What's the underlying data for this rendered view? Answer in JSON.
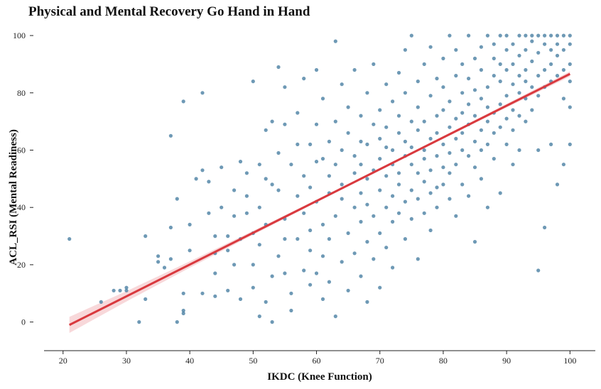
{
  "colors": {
    "points": "#4a7fa3",
    "fit_line": "#d9393e",
    "ci_band": "#f2b8bc",
    "axis": "#222222"
  },
  "chart_data": {
    "type": "scatter",
    "title": "Physical and Mental Recovery Go Hand in Hand",
    "xlabel": "IKDC (Knee Function)",
    "ylabel": "ACL_RSI (Mental Readiness)",
    "xlim": [
      17,
      104
    ],
    "ylim": [
      -10,
      102
    ],
    "x_ticks": [
      20,
      30,
      40,
      50,
      60,
      70,
      80,
      90,
      100
    ],
    "y_ticks": [
      0,
      20,
      40,
      60,
      80,
      100
    ],
    "grid": false,
    "regression": {
      "slope": 1.109,
      "intercept": -24.3,
      "x_range": [
        21,
        100
      ],
      "ci_halfwidth_at": [
        [
          21,
          2.8
        ],
        [
          30,
          1.8
        ],
        [
          40,
          1.1
        ],
        [
          50,
          0.7
        ],
        [
          60,
          0.45
        ],
        [
          75,
          0.4
        ],
        [
          85,
          0.5
        ],
        [
          100,
          0.9
        ]
      ]
    },
    "points": [
      [
        21,
        29
      ],
      [
        26,
        7
      ],
      [
        28,
        11
      ],
      [
        29,
        11
      ],
      [
        30,
        11
      ],
      [
        30,
        12
      ],
      [
        32,
        0
      ],
      [
        33,
        30
      ],
      [
        33,
        8
      ],
      [
        35,
        21
      ],
      [
        35,
        23
      ],
      [
        36,
        19
      ],
      [
        37,
        65
      ],
      [
        37,
        22
      ],
      [
        37,
        33
      ],
      [
        38,
        43
      ],
      [
        38,
        0
      ],
      [
        39,
        77
      ],
      [
        39,
        4
      ],
      [
        39,
        10
      ],
      [
        39,
        3
      ],
      [
        40,
        25
      ],
      [
        40,
        34
      ],
      [
        41,
        50
      ],
      [
        42,
        53
      ],
      [
        42,
        10
      ],
      [
        42,
        80
      ],
      [
        43,
        38
      ],
      [
        43,
        49
      ],
      [
        44,
        24
      ],
      [
        44,
        30
      ],
      [
        44,
        17
      ],
      [
        44,
        9
      ],
      [
        45,
        54
      ],
      [
        45,
        40
      ],
      [
        46,
        25
      ],
      [
        46,
        30
      ],
      [
        46,
        11
      ],
      [
        47,
        46
      ],
      [
        47,
        37
      ],
      [
        47,
        20
      ],
      [
        48,
        56
      ],
      [
        48,
        29
      ],
      [
        48,
        8
      ],
      [
        49,
        38
      ],
      [
        49,
        52
      ],
      [
        49,
        44
      ],
      [
        50,
        31
      ],
      [
        50,
        84
      ],
      [
        50,
        12
      ],
      [
        50,
        20
      ],
      [
        51,
        27
      ],
      [
        51,
        55
      ],
      [
        51,
        40
      ],
      [
        51,
        2
      ],
      [
        52,
        50
      ],
      [
        52,
        67
      ],
      [
        52,
        34
      ],
      [
        52,
        7
      ],
      [
        53,
        16
      ],
      [
        53,
        48
      ],
      [
        53,
        70
      ],
      [
        53,
        0
      ],
      [
        54,
        89
      ],
      [
        54,
        59
      ],
      [
        54,
        46
      ],
      [
        54,
        23
      ],
      [
        55,
        82
      ],
      [
        55,
        69
      ],
      [
        55,
        36
      ],
      [
        55,
        17
      ],
      [
        55,
        29
      ],
      [
        56,
        55
      ],
      [
        56,
        10
      ],
      [
        56,
        4
      ],
      [
        57,
        44
      ],
      [
        57,
        62
      ],
      [
        57,
        73
      ],
      [
        57,
        29
      ],
      [
        58,
        38
      ],
      [
        58,
        51
      ],
      [
        58,
        18
      ],
      [
        58,
        85
      ],
      [
        59,
        25
      ],
      [
        59,
        62
      ],
      [
        59,
        47
      ],
      [
        59,
        13
      ],
      [
        59,
        32
      ],
      [
        60,
        69
      ],
      [
        60,
        42
      ],
      [
        60,
        17
      ],
      [
        60,
        88
      ],
      [
        60,
        56
      ],
      [
        61,
        23
      ],
      [
        61,
        78
      ],
      [
        61,
        34
      ],
      [
        61,
        57
      ],
      [
        61,
        8
      ],
      [
        62,
        45
      ],
      [
        62,
        63
      ],
      [
        62,
        29
      ],
      [
        62,
        51
      ],
      [
        62,
        14
      ],
      [
        63,
        98
      ],
      [
        63,
        37
      ],
      [
        63,
        55
      ],
      [
        63,
        2
      ],
      [
        63,
        70
      ],
      [
        64,
        43
      ],
      [
        64,
        60
      ],
      [
        64,
        21
      ],
      [
        64,
        83
      ],
      [
        64,
        48
      ],
      [
        65,
        31
      ],
      [
        65,
        66
      ],
      [
        65,
        75
      ],
      [
        65,
        11
      ],
      [
        66,
        52
      ],
      [
        66,
        40
      ],
      [
        66,
        58
      ],
      [
        66,
        24
      ],
      [
        66,
        88
      ],
      [
        67,
        45
      ],
      [
        67,
        63
      ],
      [
        67,
        35
      ],
      [
        67,
        72
      ],
      [
        67,
        16
      ],
      [
        67,
        55
      ],
      [
        68,
        50
      ],
      [
        68,
        28
      ],
      [
        68,
        80
      ],
      [
        68,
        62
      ],
      [
        68,
        7
      ],
      [
        68,
        41
      ],
      [
        69,
        69
      ],
      [
        69,
        53
      ],
      [
        69,
        37
      ],
      [
        69,
        22
      ],
      [
        69,
        90
      ],
      [
        70,
        57
      ],
      [
        70,
        46
      ],
      [
        70,
        74
      ],
      [
        70,
        31
      ],
      [
        70,
        64
      ],
      [
        70,
        12
      ],
      [
        71,
        40
      ],
      [
        71,
        61
      ],
      [
        71,
        83
      ],
      [
        71,
        51
      ],
      [
        71,
        26
      ],
      [
        71,
        68
      ],
      [
        72,
        55
      ],
      [
        72,
        44
      ],
      [
        72,
        77
      ],
      [
        72,
        35
      ],
      [
        72,
        19
      ],
      [
        72,
        60
      ],
      [
        73,
        48
      ],
      [
        73,
        66
      ],
      [
        73,
        72
      ],
      [
        73,
        38
      ],
      [
        73,
        87
      ],
      [
        73,
        52
      ],
      [
        74,
        58
      ],
      [
        74,
        42
      ],
      [
        74,
        63
      ],
      [
        74,
        29
      ],
      [
        74,
        80
      ],
      [
        74,
        95
      ],
      [
        75,
        55
      ],
      [
        75,
        70
      ],
      [
        75,
        46
      ],
      [
        75,
        36
      ],
      [
        75,
        61
      ],
      [
        75,
        100
      ],
      [
        76,
        52
      ],
      [
        76,
        67
      ],
      [
        76,
        75
      ],
      [
        76,
        43
      ],
      [
        76,
        84
      ],
      [
        76,
        22
      ],
      [
        77,
        60
      ],
      [
        77,
        49
      ],
      [
        77,
        70
      ],
      [
        77,
        38
      ],
      [
        77,
        90
      ],
      [
        77,
        57
      ],
      [
        78,
        64
      ],
      [
        78,
        53
      ],
      [
        78,
        79
      ],
      [
        78,
        45
      ],
      [
        78,
        32
      ],
      [
        78,
        96
      ],
      [
        79,
        58
      ],
      [
        79,
        72
      ],
      [
        79,
        47
      ],
      [
        79,
        66
      ],
      [
        79,
        85
      ],
      [
        79,
        40
      ],
      [
        80,
        62
      ],
      [
        80,
        74
      ],
      [
        80,
        54
      ],
      [
        80,
        82
      ],
      [
        80,
        92
      ],
      [
        80,
        48
      ],
      [
        81,
        68
      ],
      [
        81,
        59
      ],
      [
        81,
        77
      ],
      [
        81,
        43
      ],
      [
        81,
        100
      ],
      [
        81,
        52
      ],
      [
        82,
        64
      ],
      [
        82,
        71
      ],
      [
        82,
        55
      ],
      [
        82,
        86
      ],
      [
        82,
        37
      ],
      [
        82,
        95
      ],
      [
        83,
        60
      ],
      [
        83,
        73
      ],
      [
        83,
        80
      ],
      [
        83,
        48
      ],
      [
        83,
        66
      ],
      [
        83,
        90
      ],
      [
        84,
        58
      ],
      [
        84,
        76
      ],
      [
        84,
        69
      ],
      [
        84,
        85
      ],
      [
        84,
        44
      ],
      [
        84,
        100
      ],
      [
        85,
        63
      ],
      [
        85,
        72
      ],
      [
        85,
        81
      ],
      [
        85,
        54
      ],
      [
        85,
        92
      ],
      [
        85,
        28
      ],
      [
        86,
        67
      ],
      [
        86,
        78
      ],
      [
        86,
        60
      ],
      [
        86,
        88
      ],
      [
        86,
        96
      ],
      [
        86,
        50
      ],
      [
        87,
        70
      ],
      [
        87,
        82
      ],
      [
        87,
        62
      ],
      [
        87,
        75
      ],
      [
        87,
        100
      ],
      [
        87,
        40
      ],
      [
        88,
        73
      ],
      [
        88,
        86
      ],
      [
        88,
        66
      ],
      [
        88,
        92
      ],
      [
        88,
        57
      ],
      [
        88,
        97
      ],
      [
        89,
        76
      ],
      [
        89,
        68
      ],
      [
        89,
        84
      ],
      [
        89,
        90
      ],
      [
        89,
        100
      ],
      [
        89,
        45
      ],
      [
        90,
        79
      ],
      [
        90,
        71
      ],
      [
        90,
        88
      ],
      [
        90,
        95
      ],
      [
        90,
        62
      ],
      [
        90,
        100
      ],
      [
        91,
        74
      ],
      [
        91,
        83
      ],
      [
        91,
        90
      ],
      [
        91,
        67
      ],
      [
        91,
        97
      ],
      [
        91,
        55
      ],
      [
        92,
        80
      ],
      [
        92,
        86
      ],
      [
        92,
        93
      ],
      [
        92,
        100
      ],
      [
        92,
        72
      ],
      [
        92,
        60
      ],
      [
        93,
        78
      ],
      [
        93,
        88
      ],
      [
        93,
        95
      ],
      [
        93,
        100
      ],
      [
        93,
        70
      ],
      [
        93,
        84
      ],
      [
        94,
        82
      ],
      [
        94,
        91
      ],
      [
        94,
        98
      ],
      [
        94,
        74
      ],
      [
        94,
        100
      ],
      [
        95,
        86
      ],
      [
        95,
        94
      ],
      [
        95,
        100
      ],
      [
        95,
        79
      ],
      [
        95,
        60
      ],
      [
        95,
        18
      ],
      [
        96,
        88
      ],
      [
        96,
        97
      ],
      [
        96,
        100
      ],
      [
        96,
        82
      ],
      [
        96,
        33
      ],
      [
        97,
        90
      ],
      [
        97,
        100
      ],
      [
        97,
        84
      ],
      [
        97,
        95
      ],
      [
        97,
        62
      ],
      [
        98,
        93
      ],
      [
        98,
        100
      ],
      [
        98,
        86
      ],
      [
        98,
        97
      ],
      [
        98,
        48
      ],
      [
        99,
        95
      ],
      [
        99,
        100
      ],
      [
        99,
        88
      ],
      [
        99,
        78
      ],
      [
        99,
        55
      ],
      [
        100,
        100
      ],
      [
        100,
        97
      ],
      [
        100,
        90
      ],
      [
        100,
        84
      ],
      [
        100,
        62
      ],
      [
        100,
        75
      ]
    ]
  }
}
